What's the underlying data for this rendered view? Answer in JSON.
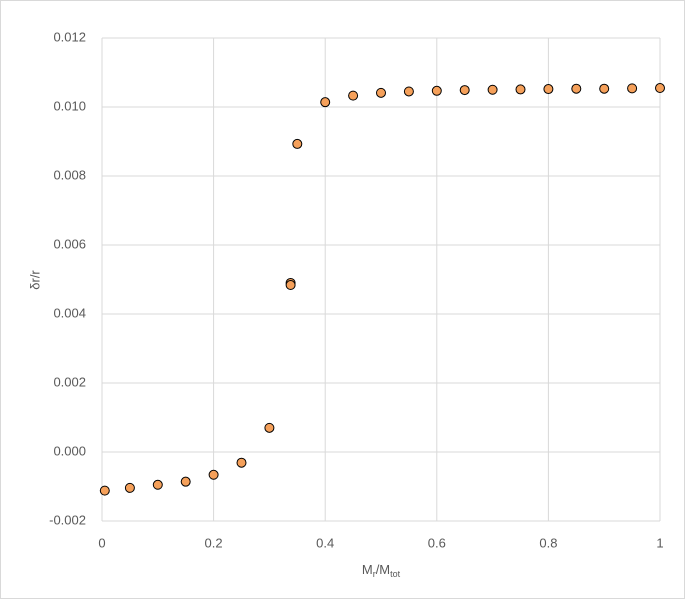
{
  "chart_data": {
    "type": "scatter",
    "xlabel": [
      "M",
      "r",
      "/M",
      "tot"
    ],
    "ylabel": "δr/r",
    "x": [
      0.005,
      0.05,
      0.1,
      0.15,
      0.2,
      0.25,
      0.3,
      0.338,
      0.338,
      0.35,
      0.4,
      0.45,
      0.5,
      0.55,
      0.6,
      0.65,
      0.7,
      0.75,
      0.8,
      0.85,
      0.9,
      0.95,
      1.0
    ],
    "series": [
      {
        "color": "#f5a05a",
        "values": [
          -0.00112,
          -0.00104,
          -0.00095,
          -0.00086,
          -0.00066,
          -0.00031,
          0.0007,
          0.0049,
          0.00484,
          0.00893,
          0.01014,
          0.01033,
          0.01041,
          0.01045,
          0.01047,
          0.01049,
          0.0105,
          0.01051,
          0.01052,
          0.01053,
          0.01053,
          0.01054,
          0.01055
        ]
      }
    ],
    "xlim": [
      0,
      1
    ],
    "xticks": [
      0,
      0.2,
      0.4,
      0.6,
      0.8,
      1
    ],
    "ylim": [
      -0.002,
      0.012
    ],
    "yticks": [
      {
        "value": -0.002,
        "label": "-0.002"
      },
      {
        "value": 0,
        "label": "0.000"
      },
      {
        "value": 0.002,
        "label": "0.002"
      },
      {
        "value": 0.004,
        "label": "0.004"
      },
      {
        "value": 0.006,
        "label": "0.006"
      },
      {
        "value": 0.008,
        "label": "0.008"
      },
      {
        "value": 0.01,
        "label": "0.010"
      },
      {
        "value": 0.012,
        "label": "0.012"
      }
    ],
    "grid": true
  }
}
